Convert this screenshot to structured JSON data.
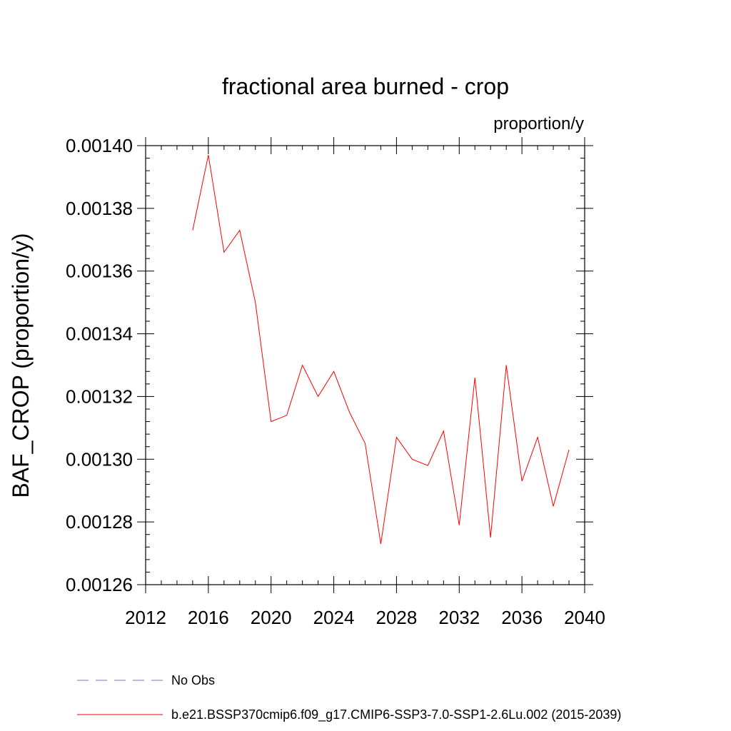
{
  "chart_data": {
    "type": "line",
    "title": "fractional area burned - crop",
    "units_label": "proportion/y",
    "xlabel": "",
    "ylabel": "BAF_CROP  (proportion/y)",
    "xlim": [
      2012,
      2040
    ],
    "ylim": [
      0.00126,
      0.0014
    ],
    "x_ticks": [
      2012,
      2016,
      2020,
      2024,
      2028,
      2032,
      2036,
      2040
    ],
    "x_tick_labels": [
      "2012",
      "2016",
      "2020",
      "2024",
      "2028",
      "2032",
      "2036",
      "2040"
    ],
    "y_ticks": [
      0.00126,
      0.00128,
      0.0013,
      0.00132,
      0.00134,
      0.00136,
      0.00138,
      0.0014
    ],
    "y_tick_labels": [
      "0.00126",
      "0.00128",
      "0.00130",
      "0.00132",
      "0.00134",
      "0.00136",
      "0.00138",
      "0.00140"
    ],
    "grid": false,
    "legend_position": "bottom",
    "series": [
      {
        "name": "b.e21.BSSP370cmip6.f09_g17.CMIP6-SSP3-7.0-SSP1-2.6Lu.002 (2015-2039)",
        "color": "#ff0000",
        "style": "solid",
        "x": [
          2015,
          2016,
          2017,
          2018,
          2019,
          2020,
          2021,
          2022,
          2023,
          2024,
          2025,
          2026,
          2027,
          2028,
          2029,
          2030,
          2031,
          2032,
          2033,
          2034,
          2035,
          2036,
          2037,
          2038,
          2039
        ],
        "y": [
          0.001373,
          0.001397,
          0.001366,
          0.001373,
          0.00135,
          0.001312,
          0.001314,
          0.00133,
          0.00132,
          0.001328,
          0.001315,
          0.001305,
          0.001273,
          0.001307,
          0.0013,
          0.001298,
          0.001309,
          0.001279,
          0.001326,
          0.001275,
          0.00133,
          0.001293,
          0.001307,
          0.001285,
          0.001303
        ]
      }
    ],
    "legend": [
      {
        "label": "No Obs",
        "color": "#7b6fc0",
        "style": "dashed"
      },
      {
        "label": "b.e21.BSSP370cmip6.f09_g17.CMIP6-SSP3-7.0-SSP1-2.6Lu.002 (2015-2039)",
        "color": "#ff0000",
        "style": "solid"
      }
    ]
  }
}
